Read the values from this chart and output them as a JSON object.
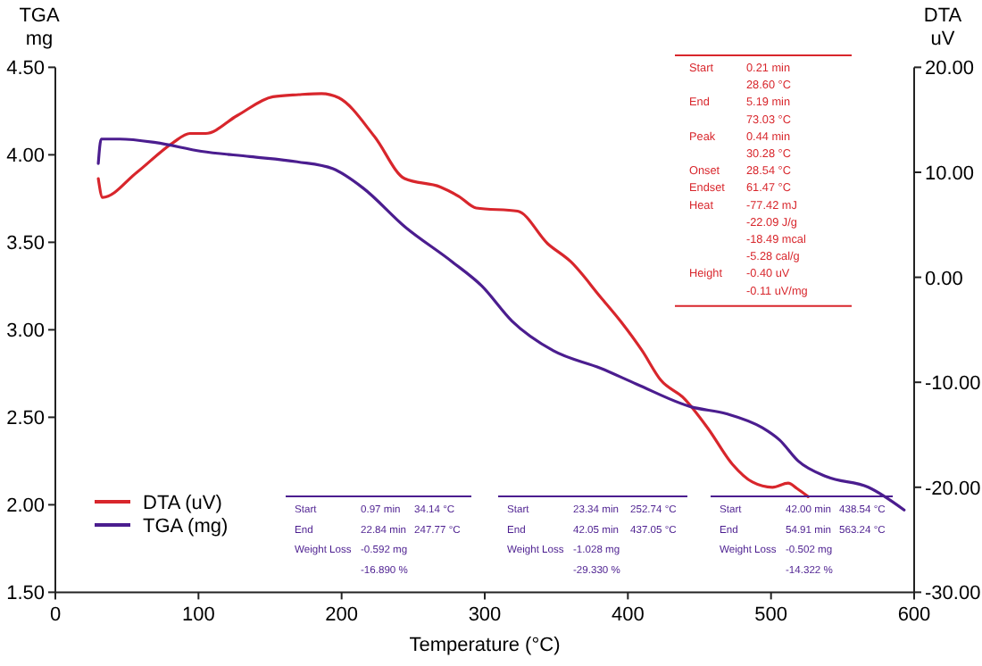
{
  "chart_data": {
    "type": "line",
    "xlabel": "Temperature (°C)",
    "ylabel": "TGA\nmg",
    "y2label": "DTA\nuV",
    "xlim": [
      0,
      600
    ],
    "xticks": [
      0,
      100,
      200,
      300,
      400,
      500,
      600
    ],
    "ylim": [
      1.5,
      4.5
    ],
    "yticks": [
      {
        "value": 1.5,
        "label": "1.50"
      },
      {
        "value": 2,
        "label": "2.00"
      },
      {
        "value": 2.5,
        "label": "2.50"
      },
      {
        "value": 3,
        "label": "3.00"
      },
      {
        "value": 3.5,
        "label": "3.50"
      },
      {
        "value": 4,
        "label": "4.00"
      },
      {
        "value": 4.5,
        "label": "4.50"
      }
    ],
    "y2lim": [
      -30,
      20
    ],
    "y2ticks": [
      {
        "value": -30,
        "label": "-30.00"
      },
      {
        "value": -20,
        "label": "-20.00"
      },
      {
        "value": -10,
        "label": "-10.00"
      },
      {
        "value": 0,
        "label": "0.00"
      },
      {
        "value": 10,
        "label": "10.00"
      },
      {
        "value": 20,
        "label": "20.00"
      }
    ],
    "grid": false,
    "legend": "bottom left",
    "marker": "none",
    "line_style": "solid",
    "series": [
      {
        "name": "DTA (uV)",
        "color": "#d8262c",
        "axis": "y2",
        "x": [
          30,
          33,
          57,
          82,
          94,
          105,
          127,
          152,
          170,
          186,
          198,
          223,
          244,
          269,
          282,
          294,
          323,
          344,
          360,
          381,
          395,
          410,
          423,
          439,
          456,
          473,
          487,
          501,
          512,
          518,
          526
        ],
        "values": [
          9.4,
          7.6,
          10.0,
          12.8,
          13.7,
          13.7,
          15.4,
          17.2,
          17.4,
          17.5,
          17.1,
          13.4,
          9.4,
          8.6,
          7.7,
          6.6,
          6.3,
          3.2,
          1.5,
          -1.9,
          -4.2,
          -7.0,
          -9.8,
          -11.5,
          -14.4,
          -17.8,
          -19.5,
          -20.0,
          -19.6,
          -20.1,
          -20.9
        ]
      },
      {
        "name": "TGA (mg)",
        "color": "#4b1d8f",
        "x": [
          30,
          32,
          45,
          70,
          102,
          136,
          169,
          194,
          215,
          244,
          277,
          298,
          319,
          348,
          381,
          406,
          444,
          469,
          494,
          506,
          519,
          539,
          568,
          593
        ],
        "values": [
          3.95,
          4.09,
          4.09,
          4.07,
          4.02,
          3.99,
          3.96,
          3.92,
          3.81,
          3.59,
          3.39,
          3.25,
          3.05,
          2.88,
          2.78,
          2.69,
          2.56,
          2.52,
          2.44,
          2.37,
          2.25,
          2.16,
          2.1,
          1.97
        ]
      }
    ],
    "annotations": [
      "Start\t0.21 min\n\t28.60 °C\nEnd\t5.19 min\n\t73.03 °C\nPeak\t0.44 min\n\t30.28 °C\nOnset\t28.54 °C\nEndset\t61.47 °C\nHeat\t-77.42 mJ\n\t-22.09 J/g\n\t-18.49 mcal\n\t-5.28 cal/g\nHeight\t-0.40 uV\n\t-0.11 uV/mg",
      "Start\t0.97 min\t34.14 °C\nEnd\t22.84 min\t247.77 °C\nWeight Loss\t-0.592 mg\n\t-16.890 %",
      "Start\t23.34 min\t252.74 °C\nEnd\t42.05 min\t437.05 °C\nWeight Loss\t-1.028 mg\n\t-29.330 %",
      "Start\t42.00 min\t438.54 °C\nEnd\t54.91 min\t563.24 °C\nWeight Loss\t-0.502 mg\n\t-14.322 %"
    ]
  }
}
